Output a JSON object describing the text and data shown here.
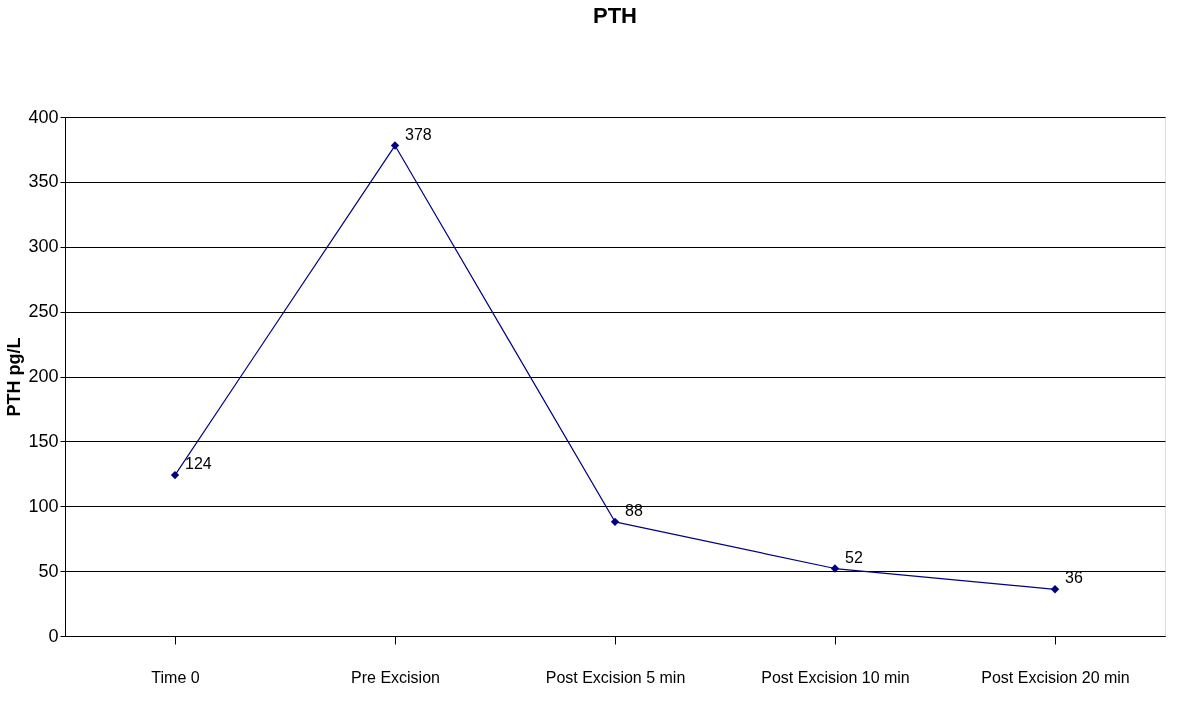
{
  "chart_data": {
    "type": "line",
    "title": "PTH",
    "ylabel": "PTH pg/L",
    "categories": [
      "Time 0",
      "Pre Excision",
      "Post Excision 5 min",
      "Post Excision 10 min",
      "Post Excision 20 min"
    ],
    "series": [
      {
        "color": "#000080",
        "values": [
          124,
          378,
          88,
          52,
          36
        ]
      }
    ],
    "ylim": [
      0,
      400
    ],
    "yticks": [
      0,
      50,
      100,
      150,
      200,
      250,
      300,
      350,
      400
    ],
    "grid": "y",
    "marker": "diamond",
    "line_style": "solid",
    "data_labels": true
  }
}
